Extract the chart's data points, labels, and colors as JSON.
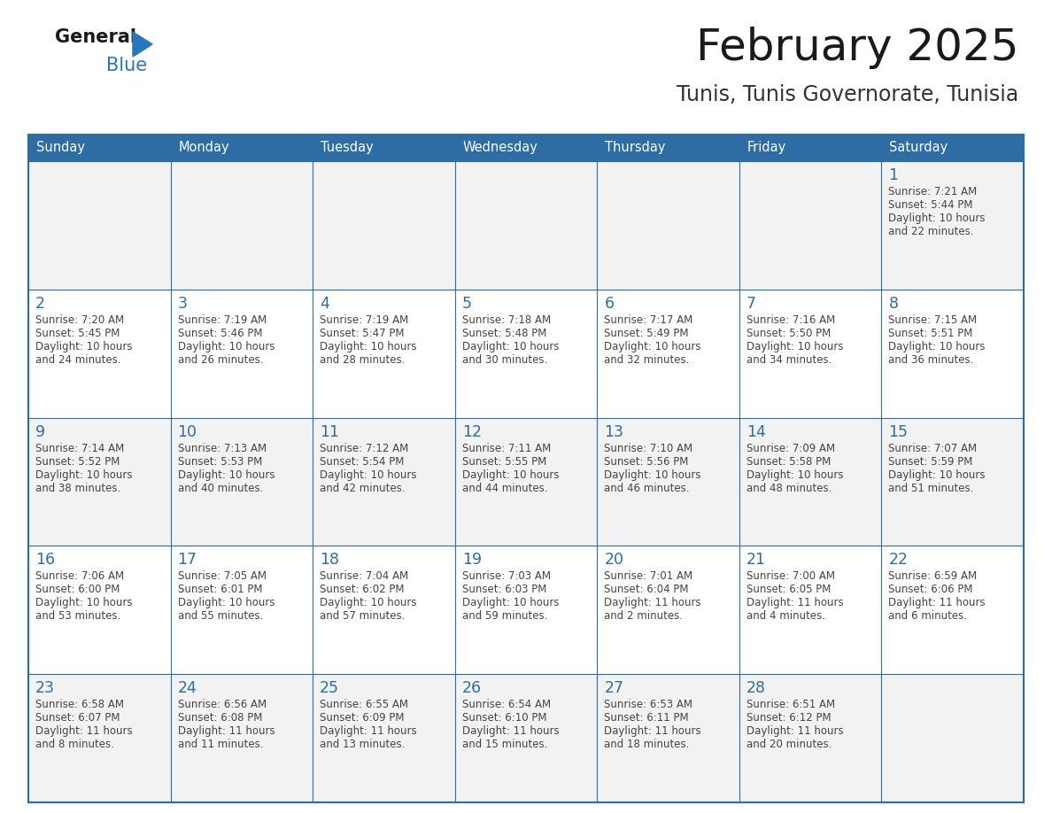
{
  "title": "February 2025",
  "subtitle": "Tunis, Tunis Governorate, Tunisia",
  "days_of_week": [
    "Sunday",
    "Monday",
    "Tuesday",
    "Wednesday",
    "Thursday",
    "Friday",
    "Saturday"
  ],
  "header_bg": "#2E6DA4",
  "header_text": "#FFFFFF",
  "border_color": "#2E6DA4",
  "day_number_color": "#2E6DA4",
  "cell_text_color": "#444444",
  "title_color": "#1a1a1a",
  "subtitle_color": "#333333",
  "logo_general_color": "#1a1a1a",
  "logo_blue_color": "#2777BC",
  "cell_bg_even": "#F2F2F2",
  "cell_bg_odd": "#FFFFFF",
  "calendar_data": [
    {
      "day": 1,
      "row": 0,
      "col": 6,
      "sunrise": "7:21 AM",
      "sunset": "5:44 PM",
      "daylight": "10 hours",
      "daylight2": "and 22 minutes."
    },
    {
      "day": 2,
      "row": 1,
      "col": 0,
      "sunrise": "7:20 AM",
      "sunset": "5:45 PM",
      "daylight": "10 hours",
      "daylight2": "and 24 minutes."
    },
    {
      "day": 3,
      "row": 1,
      "col": 1,
      "sunrise": "7:19 AM",
      "sunset": "5:46 PM",
      "daylight": "10 hours",
      "daylight2": "and 26 minutes."
    },
    {
      "day": 4,
      "row": 1,
      "col": 2,
      "sunrise": "7:19 AM",
      "sunset": "5:47 PM",
      "daylight": "10 hours",
      "daylight2": "and 28 minutes."
    },
    {
      "day": 5,
      "row": 1,
      "col": 3,
      "sunrise": "7:18 AM",
      "sunset": "5:48 PM",
      "daylight": "10 hours",
      "daylight2": "and 30 minutes."
    },
    {
      "day": 6,
      "row": 1,
      "col": 4,
      "sunrise": "7:17 AM",
      "sunset": "5:49 PM",
      "daylight": "10 hours",
      "daylight2": "and 32 minutes."
    },
    {
      "day": 7,
      "row": 1,
      "col": 5,
      "sunrise": "7:16 AM",
      "sunset": "5:50 PM",
      "daylight": "10 hours",
      "daylight2": "and 34 minutes."
    },
    {
      "day": 8,
      "row": 1,
      "col": 6,
      "sunrise": "7:15 AM",
      "sunset": "5:51 PM",
      "daylight": "10 hours",
      "daylight2": "and 36 minutes."
    },
    {
      "day": 9,
      "row": 2,
      "col": 0,
      "sunrise": "7:14 AM",
      "sunset": "5:52 PM",
      "daylight": "10 hours",
      "daylight2": "and 38 minutes."
    },
    {
      "day": 10,
      "row": 2,
      "col": 1,
      "sunrise": "7:13 AM",
      "sunset": "5:53 PM",
      "daylight": "10 hours",
      "daylight2": "and 40 minutes."
    },
    {
      "day": 11,
      "row": 2,
      "col": 2,
      "sunrise": "7:12 AM",
      "sunset": "5:54 PM",
      "daylight": "10 hours",
      "daylight2": "and 42 minutes."
    },
    {
      "day": 12,
      "row": 2,
      "col": 3,
      "sunrise": "7:11 AM",
      "sunset": "5:55 PM",
      "daylight": "10 hours",
      "daylight2": "and 44 minutes."
    },
    {
      "day": 13,
      "row": 2,
      "col": 4,
      "sunrise": "7:10 AM",
      "sunset": "5:56 PM",
      "daylight": "10 hours",
      "daylight2": "and 46 minutes."
    },
    {
      "day": 14,
      "row": 2,
      "col": 5,
      "sunrise": "7:09 AM",
      "sunset": "5:58 PM",
      "daylight": "10 hours",
      "daylight2": "and 48 minutes."
    },
    {
      "day": 15,
      "row": 2,
      "col": 6,
      "sunrise": "7:07 AM",
      "sunset": "5:59 PM",
      "daylight": "10 hours",
      "daylight2": "and 51 minutes."
    },
    {
      "day": 16,
      "row": 3,
      "col": 0,
      "sunrise": "7:06 AM",
      "sunset": "6:00 PM",
      "daylight": "10 hours",
      "daylight2": "and 53 minutes."
    },
    {
      "day": 17,
      "row": 3,
      "col": 1,
      "sunrise": "7:05 AM",
      "sunset": "6:01 PM",
      "daylight": "10 hours",
      "daylight2": "and 55 minutes."
    },
    {
      "day": 18,
      "row": 3,
      "col": 2,
      "sunrise": "7:04 AM",
      "sunset": "6:02 PM",
      "daylight": "10 hours",
      "daylight2": "and 57 minutes."
    },
    {
      "day": 19,
      "row": 3,
      "col": 3,
      "sunrise": "7:03 AM",
      "sunset": "6:03 PM",
      "daylight": "10 hours",
      "daylight2": "and 59 minutes."
    },
    {
      "day": 20,
      "row": 3,
      "col": 4,
      "sunrise": "7:01 AM",
      "sunset": "6:04 PM",
      "daylight": "11 hours",
      "daylight2": "and 2 minutes."
    },
    {
      "day": 21,
      "row": 3,
      "col": 5,
      "sunrise": "7:00 AM",
      "sunset": "6:05 PM",
      "daylight": "11 hours",
      "daylight2": "and 4 minutes."
    },
    {
      "day": 22,
      "row": 3,
      "col": 6,
      "sunrise": "6:59 AM",
      "sunset": "6:06 PM",
      "daylight": "11 hours",
      "daylight2": "and 6 minutes."
    },
    {
      "day": 23,
      "row": 4,
      "col": 0,
      "sunrise": "6:58 AM",
      "sunset": "6:07 PM",
      "daylight": "11 hours",
      "daylight2": "and 8 minutes."
    },
    {
      "day": 24,
      "row": 4,
      "col": 1,
      "sunrise": "6:56 AM",
      "sunset": "6:08 PM",
      "daylight": "11 hours",
      "daylight2": "and 11 minutes."
    },
    {
      "day": 25,
      "row": 4,
      "col": 2,
      "sunrise": "6:55 AM",
      "sunset": "6:09 PM",
      "daylight": "11 hours",
      "daylight2": "and 13 minutes."
    },
    {
      "day": 26,
      "row": 4,
      "col": 3,
      "sunrise": "6:54 AM",
      "sunset": "6:10 PM",
      "daylight": "11 hours",
      "daylight2": "and 15 minutes."
    },
    {
      "day": 27,
      "row": 4,
      "col": 4,
      "sunrise": "6:53 AM",
      "sunset": "6:11 PM",
      "daylight": "11 hours",
      "daylight2": "and 18 minutes."
    },
    {
      "day": 28,
      "row": 4,
      "col": 5,
      "sunrise": "6:51 AM",
      "sunset": "6:12 PM",
      "daylight": "11 hours",
      "daylight2": "and 20 minutes."
    }
  ]
}
